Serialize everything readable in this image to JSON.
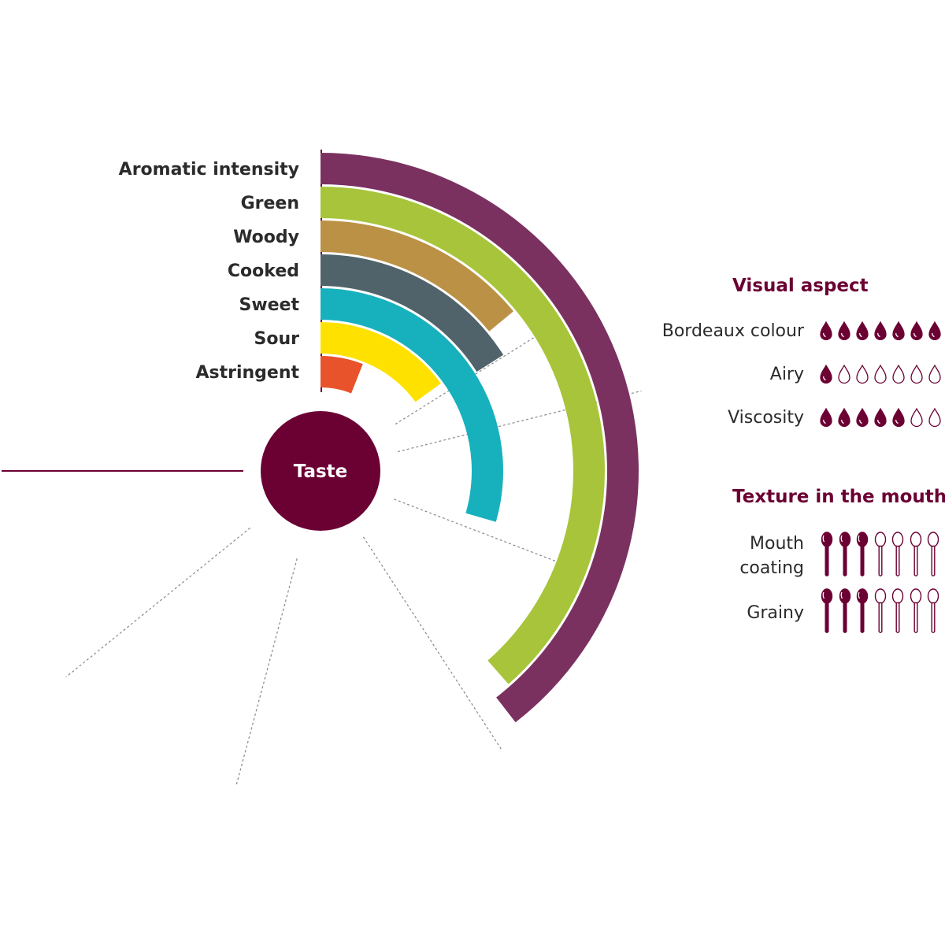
{
  "center_label": "Taste",
  "colors": {
    "accent": "#6b0033",
    "aromatic_intensity": "#7b3160",
    "green": "#a8c43a",
    "woody": "#bb9145",
    "cooked": "#50636a",
    "sweet": "#17b1bd",
    "sour": "#ffe100",
    "astringent": "#e9532b",
    "guide_line": "#888888"
  },
  "chart_data": {
    "type": "radial-bar",
    "scale": "relative intensity",
    "max": 1,
    "attributes": [
      {
        "name": "Aromatic intensity",
        "value": 0.79
      },
      {
        "name": "Green",
        "value": 0.77
      },
      {
        "name": "Woody",
        "value": 0.28
      },
      {
        "name": "Cooked",
        "value": 0.32
      },
      {
        "name": "Sweet",
        "value": 0.59
      },
      {
        "name": "Sour",
        "value": 0.3
      },
      {
        "name": "Astringent",
        "value": 0.12
      }
    ]
  },
  "visual_aspect": {
    "title": "Visual aspect",
    "icon": "drop-icon",
    "max": 7,
    "items": [
      {
        "label": "Bordeaux colour",
        "filled": 7
      },
      {
        "label": "Airy",
        "filled": 1
      },
      {
        "label": "Viscosity",
        "filled": 5
      }
    ]
  },
  "texture": {
    "title": "Texture in the mouth",
    "icon": "spoon-icon",
    "max": 7,
    "items": [
      {
        "label_line1": "Mouth",
        "label_line2": "coating",
        "filled": 3
      },
      {
        "label_line1": "Grainy",
        "label_line2": "",
        "filled": 3
      }
    ]
  }
}
